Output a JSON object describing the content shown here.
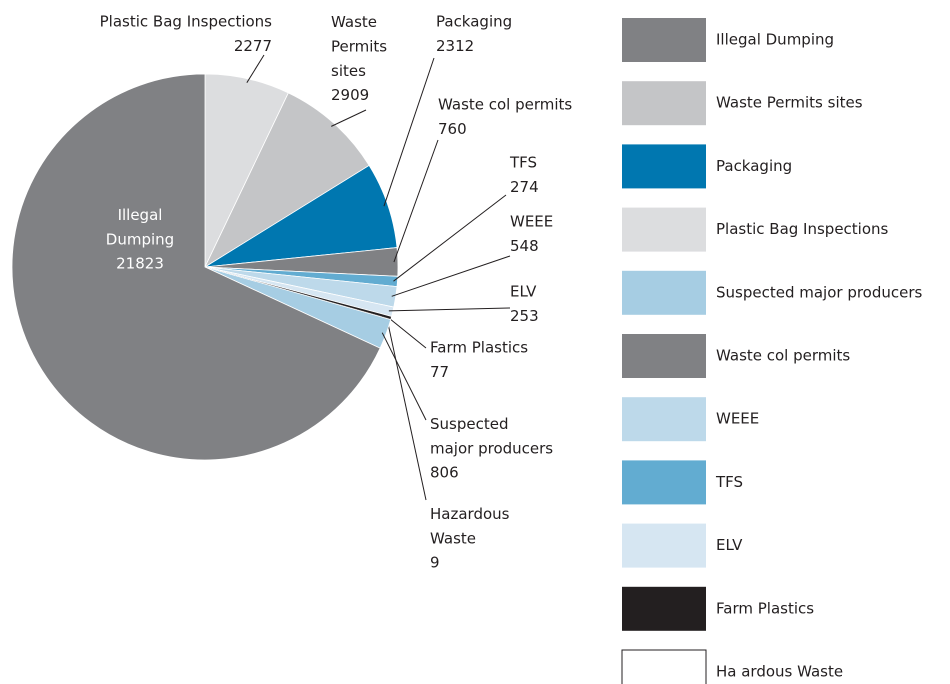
{
  "chart_data": {
    "type": "pie",
    "categories": [
      "Plastic Bag Inspections",
      "Waste\nPermits\nsites",
      "Packaging",
      "Waste col permits",
      "TFS",
      "WEEE",
      "ELV",
      "Farm Plastics",
      "Hazardous\nWaste",
      "Suspected\nmajor producers",
      "Illegal\nDumping"
    ],
    "values": [
      2277,
      2909,
      2312,
      760,
      274,
      548,
      253,
      77,
      9,
      806,
      21823
    ],
    "colors": [
      "#dcdddf",
      "#c4c5c7",
      "#0077b0",
      "#808184",
      "#62acd1",
      "#bdd9ea",
      "#d6e6f2",
      "#231f20",
      "#ffffff",
      "#a6cde3",
      "#808184"
    ],
    "legend": [
      {
        "label": "Illegal Dumping",
        "color": "#808184"
      },
      {
        "label": "Waste Permits sites",
        "color": "#c4c5c7"
      },
      {
        "label": "Packaging",
        "color": "#0077b0"
      },
      {
        "label": "Plastic Bag Inspections",
        "color": "#dcdddf"
      },
      {
        "label": "Suspected major producers",
        "color": "#a6cde3"
      },
      {
        "label": "Waste col permits",
        "color": "#808184"
      },
      {
        "label": "WEEE",
        "color": "#bdd9ea"
      },
      {
        "label": "TFS",
        "color": "#62acd1"
      },
      {
        "label": "ELV",
        "color": "#d6e6f2"
      },
      {
        "label": "Farm Plastics",
        "color": "#231f20"
      },
      {
        "label": "Ha ardous Waste",
        "color": "#ffffff"
      }
    ]
  }
}
